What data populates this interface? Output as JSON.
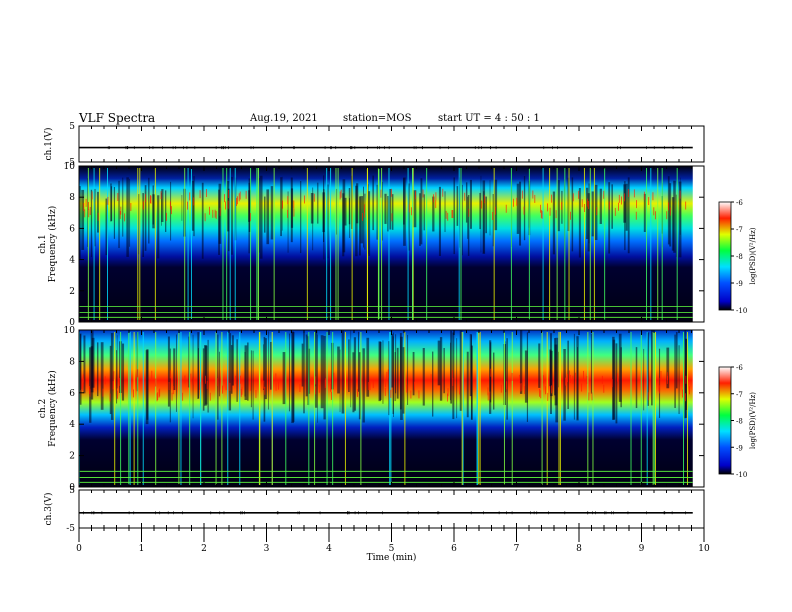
{
  "header": {
    "title": "VLF Spectra",
    "date": "Aug.19, 2021",
    "station": "station=MOS",
    "start_ut": "start  UT =   4 : 50 : 1"
  },
  "chart_data": [
    {
      "type": "line",
      "panel": "waveform-ch1",
      "ylabel": "ch.1(V)",
      "ylim": [
        -5,
        5
      ],
      "yticks": [
        "5",
        "-5"
      ],
      "xlim": [
        0,
        10
      ],
      "series": [
        {
          "values": [
            -1,
            -1
          ]
        }
      ]
    },
    {
      "type": "heatmap",
      "panel": "spectrogram-ch1",
      "ylabel_line1": "ch.1",
      "ylabel_line2": "Frequency (kHz)",
      "ylim": [
        0,
        10
      ],
      "yticks": [
        "0",
        "2",
        "4",
        "6",
        "8",
        "10"
      ],
      "xlim": [
        0,
        10
      ],
      "colorbar": {
        "label": "log(PSD)(V²/Hz)",
        "range": [
          -10,
          -6
        ],
        "ticks": [
          "-6",
          "-7",
          "-8",
          "-9",
          "-10"
        ]
      },
      "band_low_khz": 4,
      "band_high_khz": 9.4,
      "band_peak_khz": 7.5
    },
    {
      "type": "heatmap",
      "panel": "spectrogram-ch2",
      "ylabel_line1": "ch.2",
      "ylabel_line2": "Frequency (kHz)",
      "ylim": [
        0,
        10
      ],
      "yticks": [
        "0",
        "2",
        "4",
        "6",
        "8",
        "10"
      ],
      "xlim": [
        0,
        10
      ],
      "colorbar": {
        "label": "log(PSD)(V²/Hz)",
        "range": [
          -10,
          -6
        ],
        "ticks": [
          "-6",
          "-7",
          "-8",
          "-9",
          "-10"
        ]
      },
      "band_low_khz": 4,
      "band_high_khz": 10,
      "band_peak_khz": 6.5
    },
    {
      "type": "line",
      "panel": "waveform-ch3",
      "ylabel": "ch.3(V)",
      "ylim": [
        -5,
        5
      ],
      "yticks": [
        "5",
        "-5"
      ],
      "xlim": [
        0,
        10
      ],
      "xlabel": "Time  (min)",
      "xticks": [
        "0",
        "1",
        "2",
        "3",
        "4",
        "5",
        "6",
        "7",
        "8",
        "9",
        "10"
      ],
      "series": [
        {
          "values": [
            -1,
            -1
          ]
        }
      ]
    }
  ]
}
